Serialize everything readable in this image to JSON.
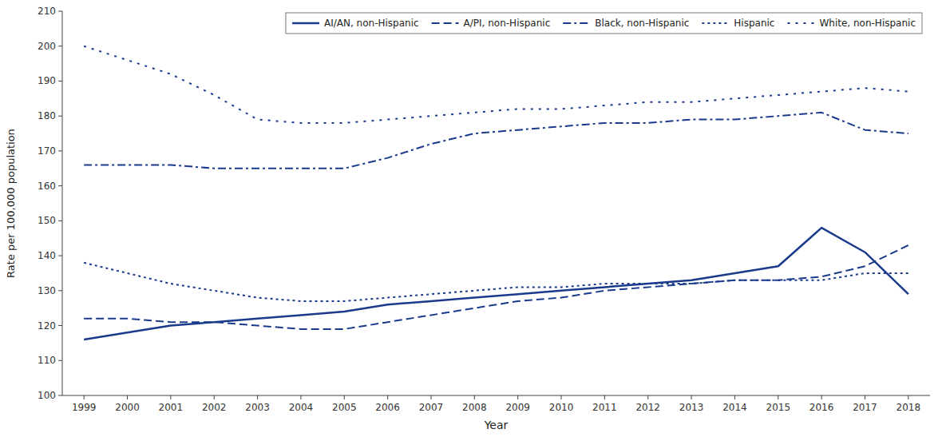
{
  "chart_data": {
    "type": "line",
    "xlabel": "Year",
    "ylabel": "Rate per 100,000 population",
    "x": [
      1999,
      2000,
      2001,
      2002,
      2003,
      2004,
      2005,
      2006,
      2007,
      2008,
      2009,
      2010,
      2011,
      2012,
      2013,
      2014,
      2015,
      2016,
      2017,
      2018
    ],
    "series": [
      {
        "name": "AI/AN, non-Hispanic",
        "color": "#1a3a8c",
        "line_style": "solid",
        "values": [
          116,
          118,
          120,
          121,
          122,
          123,
          124,
          126,
          127,
          128,
          129,
          130,
          131,
          132,
          133,
          135,
          137,
          148,
          141,
          129
        ]
      },
      {
        "name": "A/PI, non-Hispanic",
        "color": "#1a3a8c",
        "line_style": "dashed",
        "values": [
          122,
          122,
          121,
          121,
          120,
          119,
          119,
          121,
          123,
          125,
          127,
          128,
          130,
          131,
          132,
          133,
          133,
          134,
          137,
          143
        ]
      },
      {
        "name": "Black, non-Hispanic",
        "color": "#1a3a8c",
        "line_style": "dashdot",
        "values": [
          166,
          166,
          166,
          165,
          165,
          165,
          165,
          168,
          172,
          175,
          176,
          177,
          178,
          178,
          179,
          179,
          180,
          181,
          176,
          175
        ]
      },
      {
        "name": "Hispanic",
        "color": "#1a3a8c",
        "line_style": "dotted",
        "values": [
          138,
          135,
          132,
          130,
          128,
          127,
          127,
          128,
          129,
          130,
          131,
          131,
          132,
          132,
          132,
          133,
          133,
          133,
          135,
          135
        ]
      },
      {
        "name": "White, non-Hispanic",
        "color": "#1a3a8c",
        "line_style": "loosely-dotted",
        "values": [
          200,
          196,
          192,
          186,
          179,
          178,
          178,
          179,
          180,
          181,
          182,
          182,
          183,
          184,
          184,
          185,
          186,
          187,
          188,
          187
        ]
      }
    ],
    "xlim": [
      1998.5,
      2018.5
    ],
    "xticks": [
      1999,
      2000,
      2001,
      2002,
      2003,
      2004,
      2005,
      2006,
      2007,
      2008,
      2009,
      2010,
      2011,
      2012,
      2013,
      2014,
      2015,
      2016,
      2017,
      2018
    ],
    "ylim": [
      100,
      210
    ],
    "yticks": [
      100,
      110,
      120,
      130,
      140,
      150,
      160,
      170,
      180,
      190,
      200,
      210
    ],
    "grid": false,
    "legend": "upper right"
  }
}
